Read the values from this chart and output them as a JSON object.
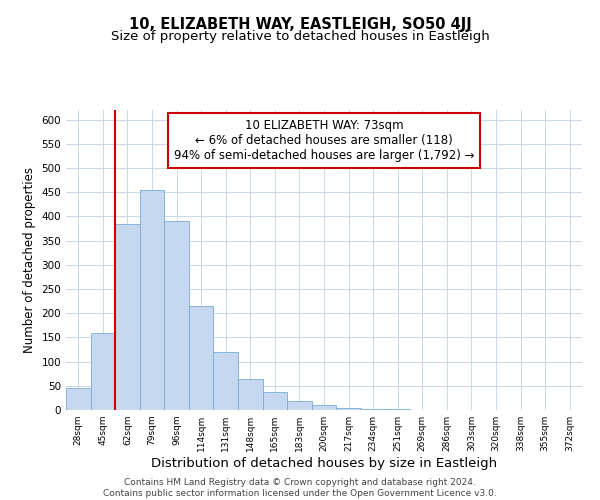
{
  "title": "10, ELIZABETH WAY, EASTLEIGH, SO50 4JJ",
  "subtitle": "Size of property relative to detached houses in Eastleigh",
  "xlabel": "Distribution of detached houses by size in Eastleigh",
  "ylabel": "Number of detached properties",
  "bar_labels": [
    "28sqm",
    "45sqm",
    "62sqm",
    "79sqm",
    "96sqm",
    "114sqm",
    "131sqm",
    "148sqm",
    "165sqm",
    "183sqm",
    "200sqm",
    "217sqm",
    "234sqm",
    "251sqm",
    "269sqm",
    "286sqm",
    "303sqm",
    "320sqm",
    "338sqm",
    "355sqm",
    "372sqm"
  ],
  "bar_heights": [
    45,
    160,
    385,
    455,
    390,
    215,
    120,
    65,
    37,
    18,
    10,
    5,
    3,
    2,
    1,
    0,
    0,
    0,
    0,
    0,
    0
  ],
  "bar_color": "#c5d8f0",
  "bar_edge_color": "#7aadd4",
  "vline_x": 2.0,
  "vline_color": "#cc0000",
  "annotation_line1": "10 ELIZABETH WAY: 73sqm",
  "annotation_line2": "← 6% of detached houses are smaller (118)",
  "annotation_line3": "94% of semi-detached houses are larger (1,792) →",
  "annotation_box_edge": "#cc0000",
  "annotation_fontsize": 8.5,
  "ylim": [
    0,
    620
  ],
  "yticks": [
    0,
    50,
    100,
    150,
    200,
    250,
    300,
    350,
    400,
    450,
    500,
    550,
    600
  ],
  "title_fontsize": 10.5,
  "subtitle_fontsize": 9.5,
  "xlabel_fontsize": 9.5,
  "ylabel_fontsize": 8.5,
  "footer_text": "Contains HM Land Registry data © Crown copyright and database right 2024.\nContains public sector information licensed under the Open Government Licence v3.0.",
  "footer_fontsize": 6.5,
  "bg_color": "#ffffff",
  "grid_color": "#c8d8e8"
}
